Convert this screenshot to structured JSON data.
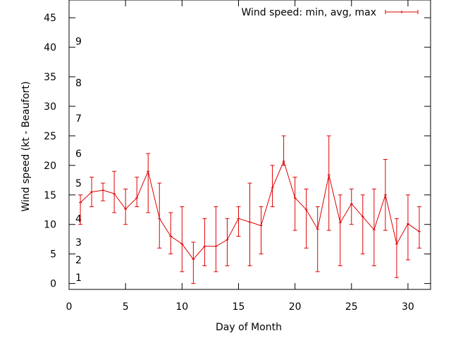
{
  "chart_data": {
    "type": "line",
    "title": "",
    "xlabel": "Day of Month",
    "ylabel": "Wind speed (kt - Beaufort)",
    "xlim": [
      0,
      32
    ],
    "ylim": [
      -1,
      48
    ],
    "x_ticks": [
      0,
      5,
      10,
      15,
      20,
      25,
      30
    ],
    "y_ticks": [
      0,
      5,
      10,
      15,
      20,
      25,
      30,
      35,
      40,
      45
    ],
    "grid": false,
    "legend_position": "top-right",
    "series_color": "#e00000",
    "beaufort_labels": [
      {
        "label": "1",
        "y": 1
      },
      {
        "label": "2",
        "y": 4
      },
      {
        "label": "3",
        "y": 7
      },
      {
        "label": "4",
        "y": 11
      },
      {
        "label": "5",
        "y": 17
      },
      {
        "label": "6",
        "y": 22
      },
      {
        "label": "7",
        "y": 28
      },
      {
        "label": "8",
        "y": 34
      },
      {
        "label": "9",
        "y": 41
      }
    ],
    "series": [
      {
        "name": "Wind speed: min, avg, max",
        "x": [
          1,
          2,
          3,
          4,
          5,
          6,
          7,
          8,
          9,
          10,
          11,
          12,
          13,
          14,
          15,
          16,
          17,
          18,
          19,
          20,
          21,
          22,
          23,
          24,
          25,
          26,
          27,
          28,
          29,
          30,
          31
        ],
        "avg": [
          13.7,
          15.5,
          15.8,
          15.2,
          12.6,
          14.5,
          19.0,
          11.0,
          8.0,
          6.7,
          4.1,
          6.3,
          6.3,
          7.4,
          11.0,
          10.4,
          9.8,
          16.2,
          20.7,
          14.5,
          12.5,
          9.2,
          18.4,
          10.3,
          13.5,
          11.3,
          9.1,
          15.0,
          6.7,
          10.1,
          8.8
        ],
        "min": [
          10,
          13,
          14,
          12,
          10,
          13,
          12,
          6,
          5,
          2,
          0,
          3,
          2,
          3,
          8,
          3,
          5,
          13,
          20,
          9,
          6,
          2,
          9,
          3,
          10,
          5,
          3,
          9,
          1,
          4,
          6
        ],
        "max": [
          15,
          18,
          17,
          19,
          16,
          18,
          22,
          17,
          12,
          13,
          7,
          11,
          13,
          11,
          13,
          17,
          13,
          20,
          25,
          18,
          16,
          13,
          25,
          15,
          16,
          15,
          16,
          21,
          11,
          15,
          13
        ]
      }
    ]
  }
}
